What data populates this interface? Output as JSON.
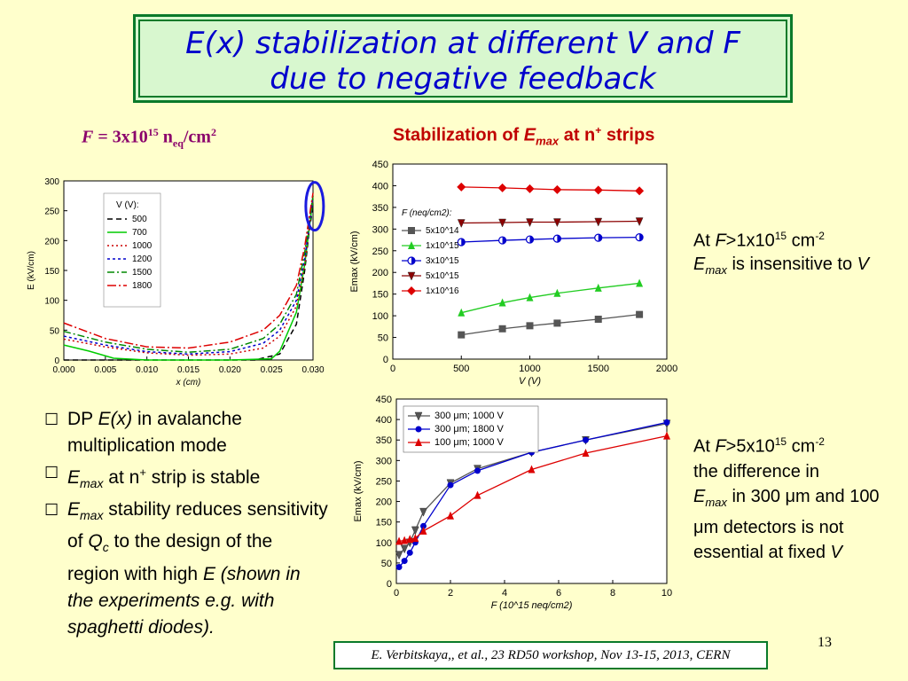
{
  "title": {
    "line1": "E(x) stabilization at different V and F",
    "line2": "due to negative feedback"
  },
  "f_param": {
    "prefix": "F",
    "eq": " = 3x10",
    "exp": "15",
    "unit": " n",
    "sub": "eq",
    "unit2": "/cm",
    "exp2": "2"
  },
  "stab_title": {
    "pre": "Stabilization of ",
    "e": "E",
    "sub": "max",
    "post": " at n",
    "sup": "+",
    "post2": " strips"
  },
  "bullets": [
    {
      "marker": "☐",
      "a": "DP ",
      "b": "E(x)",
      "c": " in avalanche multiplication mode"
    },
    {
      "marker": "☐",
      "a": "E",
      "sub": "max",
      "c": " at n",
      "sup": "+",
      "d": " strip is stable"
    },
    {
      "marker": "☐",
      "a": "E",
      "sub": "max",
      "c": " stability reduces sensitivity of ",
      "q": "Q",
      "qsub": "c",
      "d": " to the design of the region with high ",
      "e": "E",
      "f": " (shown in the experiments e.g. with spaghetti diodes)."
    }
  ],
  "note1": {
    "a": "At ",
    "f": "F",
    ">": ">1x10",
    "exp": "15",
    "unit": " cm",
    "exp2": "-2",
    "e": "E",
    "sub": "max",
    "b": " is insensitive to ",
    "v": "V"
  },
  "note2": {
    "a": "At ",
    "f": "F",
    "gt": ">5x10",
    "exp": "15",
    "unit": " cm",
    "exp2": "-2",
    "b": "the difference in",
    "e": "E",
    "sub": "max",
    "c": " in 300 ",
    "mu": "μ",
    "d": "m and 100 ",
    "e2": "μ",
    "f2": "m detectors is not essential at fixed ",
    "v": "V"
  },
  "credit": "E. Verbitskaya,, et  al., 23 RD50 workshop, Nov 13-15, 2013, CERN",
  "page_number": "13",
  "colors": {
    "title_border": "#0a7a2a",
    "title_bg": "#d8f7cf",
    "title_text": "#0000cc",
    "background": "#ffffcc",
    "stab_title": "#c00000"
  },
  "chart_data": [
    {
      "type": "line",
      "xlabel": "x (cm)",
      "ylabel": "E (kV/cm)",
      "xlim": [
        0,
        0.03
      ],
      "ylim": [
        0,
        300
      ],
      "x_ticks": [
        "0.000",
        "0.005",
        "0.010",
        "0.015",
        "0.020",
        "0.025",
        "0.030"
      ],
      "y_ticks": [
        "0",
        "50",
        "100",
        "150",
        "200",
        "250",
        "300"
      ],
      "legend_title": "V (V):",
      "legend_position": "top-left",
      "series": [
        {
          "name": "500",
          "color": "#000000",
          "dash": "6,4",
          "x": [
            0,
            0.023,
            0.026,
            0.028,
            0.029,
            0.0295,
            0.03
          ],
          "y": [
            0,
            0,
            10,
            60,
            150,
            210,
            260
          ]
        },
        {
          "name": "700",
          "color": "#00cc00",
          "dash": "",
          "x": [
            0,
            0.003,
            0.006,
            0.01,
            0.02,
            0.025,
            0.026,
            0.028,
            0.029,
            0.03
          ],
          "y": [
            25,
            15,
            3,
            0,
            0,
            2,
            15,
            80,
            160,
            270
          ]
        },
        {
          "name": "1000",
          "color": "#cc0000",
          "dash": "2,3",
          "x": [
            0,
            0.005,
            0.01,
            0.015,
            0.02,
            0.024,
            0.026,
            0.028,
            0.029,
            0.03
          ],
          "y": [
            35,
            22,
            12,
            8,
            10,
            20,
            40,
            90,
            160,
            275
          ]
        },
        {
          "name": "1200",
          "color": "#0000cc",
          "dash": "3,3",
          "x": [
            0,
            0.005,
            0.01,
            0.015,
            0.02,
            0.024,
            0.026,
            0.028,
            0.029,
            0.03
          ],
          "y": [
            40,
            25,
            14,
            10,
            14,
            28,
            50,
            100,
            170,
            272
          ]
        },
        {
          "name": "1500",
          "color": "#008800",
          "dash": "8,3,2,3",
          "x": [
            0,
            0.005,
            0.01,
            0.015,
            0.02,
            0.024,
            0.026,
            0.028,
            0.029,
            0.03
          ],
          "y": [
            48,
            30,
            18,
            13,
            18,
            36,
            60,
            110,
            180,
            275
          ]
        },
        {
          "name": "1800",
          "color": "#dd0000",
          "dash": "10,3,2,3",
          "x": [
            0,
            0.005,
            0.01,
            0.015,
            0.02,
            0.024,
            0.026,
            0.028,
            0.029,
            0.03
          ],
          "y": [
            62,
            36,
            22,
            20,
            30,
            50,
            75,
            125,
            190,
            280
          ]
        }
      ],
      "annotation": "ellipse at x=0.030, E≈250"
    },
    {
      "type": "line",
      "xlabel": "V (V)",
      "ylabel": "Emax (kV/cm)",
      "xlim": [
        0,
        2000
      ],
      "ylim": [
        0,
        450
      ],
      "x_ticks": [
        "0",
        "500",
        "1000",
        "1500",
        "2000"
      ],
      "y_ticks": [
        "0",
        "50",
        "100",
        "150",
        "200",
        "250",
        "300",
        "350",
        "400",
        "450"
      ],
      "legend_title": "F (neq/cm2):",
      "legend_position": "left",
      "series": [
        {
          "name": "5x10^14",
          "color": "#555555",
          "marker": "square",
          "x": [
            500,
            800,
            1000,
            1200,
            1500,
            1800
          ],
          "y": [
            56,
            70,
            77,
            83,
            92,
            103
          ]
        },
        {
          "name": "1x10^15",
          "color": "#22cc22",
          "marker": "triangle",
          "x": [
            500,
            800,
            1000,
            1200,
            1500,
            1800
          ],
          "y": [
            107,
            130,
            142,
            152,
            164,
            175
          ]
        },
        {
          "name": "3x10^15",
          "color": "#0000cc",
          "marker": "halfcircle",
          "x": [
            500,
            800,
            1000,
            1200,
            1500,
            1800
          ],
          "y": [
            270,
            274,
            276,
            278,
            280,
            281
          ]
        },
        {
          "name": "5x10^15",
          "color": "#8b0000",
          "marker": "triangle-down",
          "x": [
            500,
            800,
            1000,
            1200,
            1500,
            1800
          ],
          "y": [
            314,
            315,
            316,
            316,
            317,
            318
          ]
        },
        {
          "name": "1x10^16",
          "color": "#dd0000",
          "marker": "diamond",
          "x": [
            500,
            800,
            1000,
            1200,
            1500,
            1800
          ],
          "y": [
            397,
            395,
            393,
            391,
            390,
            388
          ]
        }
      ]
    },
    {
      "type": "line",
      "xlabel": "F (10^15 neq/cm2)",
      "ylabel": "Emax (kV/cm)",
      "xlim": [
        0,
        10
      ],
      "ylim": [
        0,
        450
      ],
      "x_ticks": [
        "0",
        "2",
        "4",
        "6",
        "8",
        "10"
      ],
      "y_ticks": [
        "0",
        "50",
        "100",
        "150",
        "200",
        "250",
        "300",
        "350",
        "400",
        "450"
      ],
      "legend_position": "top-left",
      "series": [
        {
          "name": "300 μm; 1000 V",
          "color": "#555555",
          "marker": "triangle-down",
          "x": [
            0.1,
            0.3,
            0.5,
            0.7,
            1,
            2,
            3,
            5,
            7,
            10
          ],
          "y": [
            70,
            85,
            100,
            130,
            175,
            245,
            280,
            320,
            350,
            390
          ]
        },
        {
          "name": "300 μm; 1800 V",
          "color": "#0000cc",
          "marker": "circle",
          "x": [
            0.1,
            0.3,
            0.5,
            0.7,
            1,
            2,
            3,
            5,
            7,
            10
          ],
          "y": [
            40,
            55,
            75,
            100,
            140,
            240,
            275,
            320,
            350,
            393
          ]
        },
        {
          "name": "100 μm; 1000 V",
          "color": "#dd0000",
          "marker": "triangle",
          "x": [
            0.1,
            0.3,
            0.5,
            0.7,
            1,
            2,
            3,
            5,
            7,
            10
          ],
          "y": [
            103,
            105,
            108,
            110,
            128,
            165,
            215,
            278,
            318,
            360
          ]
        }
      ]
    }
  ]
}
